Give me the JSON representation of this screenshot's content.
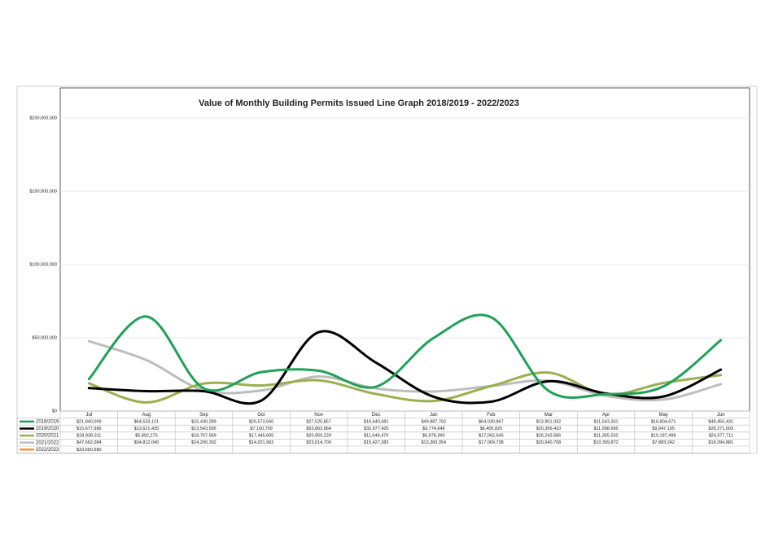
{
  "chart_data": {
    "type": "line",
    "title": "Value of Monthly Building Permits Issued Line Graph 2018/2019 - 2022/2023",
    "categories": [
      "Jul",
      "Aug",
      "Sep",
      "Oct",
      "Nov",
      "Dec",
      "Jan",
      "Feb",
      "Mar",
      "Apr",
      "May",
      "Jun"
    ],
    "ylim": [
      0,
      200000000
    ],
    "yticks": [
      {
        "value": 0,
        "label": "$0"
      },
      {
        "value": 50000000,
        "label": "$50,000,000"
      },
      {
        "value": 100000000,
        "label": "$100,000,000"
      },
      {
        "value": 150000000,
        "label": "$150,000,000"
      },
      {
        "value": 200000000,
        "label": "$200,000,000"
      }
    ],
    "grid": true,
    "series": [
      {
        "name": "2018/2019",
        "color": "#1fa15a",
        "values": [
          21840009,
          64533121,
          15430289,
          26573560,
          27525857,
          16640681,
          49887762,
          64030867,
          13901032,
          11543331,
          16804671,
          48450431
        ],
        "value_labels": [
          "$21,840,009",
          "$64,533,121",
          "$15,430,289",
          "$26,573,560",
          "$27,525,857",
          "$16,640,681",
          "$49,887,762",
          "$64,030,867",
          "$13,901,032",
          "$11,543,331",
          "$16,804,671",
          "$48,450,431"
        ]
      },
      {
        "name": "2019/2020",
        "color": "#000000",
        "values": [
          15677986,
          13621435,
          13543595,
          7160709,
          53862864,
          32977425,
          9774648,
          6405825,
          20356410,
          11998695,
          9947195,
          28271003
        ],
        "value_labels": [
          "$15,677,986",
          "$13,621,435",
          "$13,543,595",
          "$7,160,709",
          "$53,862,864",
          "$32,977,425",
          "$9,774,648",
          "$6,405,825",
          "$20,356,410",
          "$11,998,695",
          "$9,947,195",
          "$28,271,003"
        ]
      },
      {
        "name": "2020/2021",
        "color": "#9aaf4f",
        "values": [
          18938311,
          5892275,
          18767569,
          17445605,
          20959229,
          11649479,
          6878390,
          17062645,
          26243586,
          11355532,
          19187498,
          24577711
        ],
        "value_labels": [
          "$18,938,311",
          "$5,892,275",
          "$18,767,569",
          "$17,445,605",
          "$20,959,229",
          "$11,649,479",
          "$6,878,390",
          "$17,062,645",
          "$26,243,586",
          "$11,355,532",
          "$19,187,498",
          "$24,577,711"
        ]
      },
      {
        "name": "2021/2022",
        "color": "#bdbdbd",
        "values": [
          47662084,
          34812040,
          14200392,
          14021962,
          23514700,
          15427382,
          13360354,
          17069738,
          20640708,
          10399872,
          7883242,
          18394881
        ],
        "value_labels": [
          "$47,662,084",
          "$34,812,040",
          "$14,200,392",
          "$14,021,962",
          "$23,514,700",
          "$15,427,382",
          "$13,360,354",
          "$17,069,738",
          "$20,640,708",
          "$10,399,872",
          "$7,883,242",
          "$18,394,881"
        ]
      },
      {
        "name": "2022/2023",
        "color": "#f0964a",
        "values": [
          33650680,
          null,
          null,
          null,
          null,
          null,
          null,
          null,
          null,
          null,
          null,
          null
        ],
        "value_labels": [
          "$33,650,680",
          null,
          null,
          null,
          null,
          null,
          null,
          null,
          null,
          null,
          null,
          null
        ]
      }
    ]
  }
}
